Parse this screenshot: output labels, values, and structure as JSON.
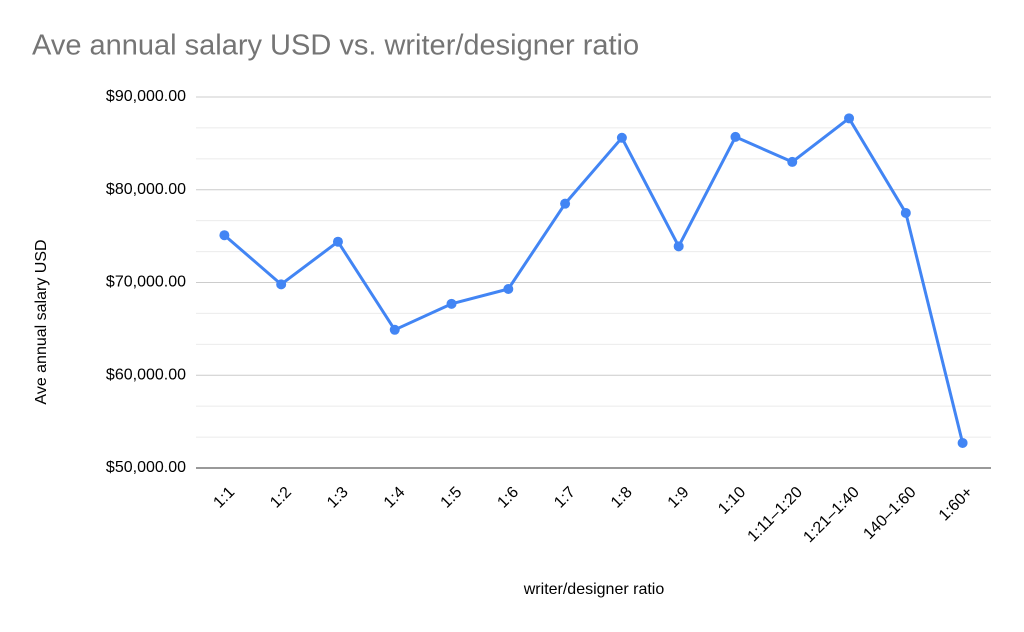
{
  "chart_data": {
    "type": "line",
    "title": "Ave annual salary USD vs. writer/designer ratio",
    "x_label": "writer/designer ratio",
    "y_label": "Ave annual salary USD",
    "categories": [
      "1:1",
      "1:2",
      "1:3",
      "1:4",
      "1:5",
      "1:6",
      "1:7",
      "1:8",
      "1:9",
      "1:10",
      "1:11–1:20",
      "1:21–1:40",
      "140–1:60",
      "1:60+"
    ],
    "series": [
      {
        "name": "Ave annual salary USD",
        "color": "#4285f4",
        "values": [
          75100,
          69800,
          74400,
          64900,
          67700,
          69300,
          78500,
          85600,
          73900,
          85700,
          83000,
          87700,
          77500,
          52700
        ]
      }
    ],
    "ylim": [
      50000,
      90000
    ],
    "yticks": [
      {
        "value": 50000,
        "label": "$50,000.00"
      },
      {
        "value": 60000,
        "label": "$60,000.00"
      },
      {
        "value": 70000,
        "label": "$70,000.00"
      },
      {
        "value": 80000,
        "label": "$80,000.00"
      },
      {
        "value": 90000,
        "label": "$90,000.00"
      }
    ],
    "grid": true,
    "minor_grid_divisions": 3
  }
}
